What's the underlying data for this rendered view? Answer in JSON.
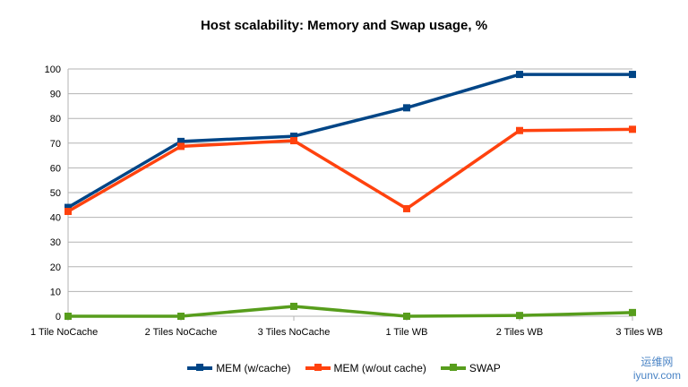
{
  "chart_data": {
    "type": "line",
    "title": "Host scalability: Memory and Swap usage, %",
    "categories": [
      "1 Tile NoCache",
      "2 Tiles NoCache",
      "3 Tiles NoCache",
      "1 Tile WB",
      "2 Tiles WB",
      "3 Tiles WB"
    ],
    "ylim": [
      0,
      100
    ],
    "yticks": [
      0,
      10,
      20,
      30,
      40,
      50,
      60,
      70,
      80,
      90,
      100
    ],
    "grid": true,
    "legend_position": "bottom",
    "series": [
      {
        "name": "MEM (w/cache)",
        "color": "#004586",
        "values": [
          44,
          70.7,
          72.8,
          84.3,
          97.8,
          97.8
        ]
      },
      {
        "name": "MEM (w/out cache)",
        "color": "#ff420e",
        "values": [
          42.4,
          68.7,
          71,
          43.5,
          75.1,
          75.6
        ]
      },
      {
        "name": "SWAP",
        "color": "#579d1c",
        "values": [
          0,
          0,
          4,
          0,
          0.3,
          1.5
        ]
      }
    ]
  },
  "watermark": {
    "line1": "运维网",
    "line2": "iyunv.com"
  }
}
